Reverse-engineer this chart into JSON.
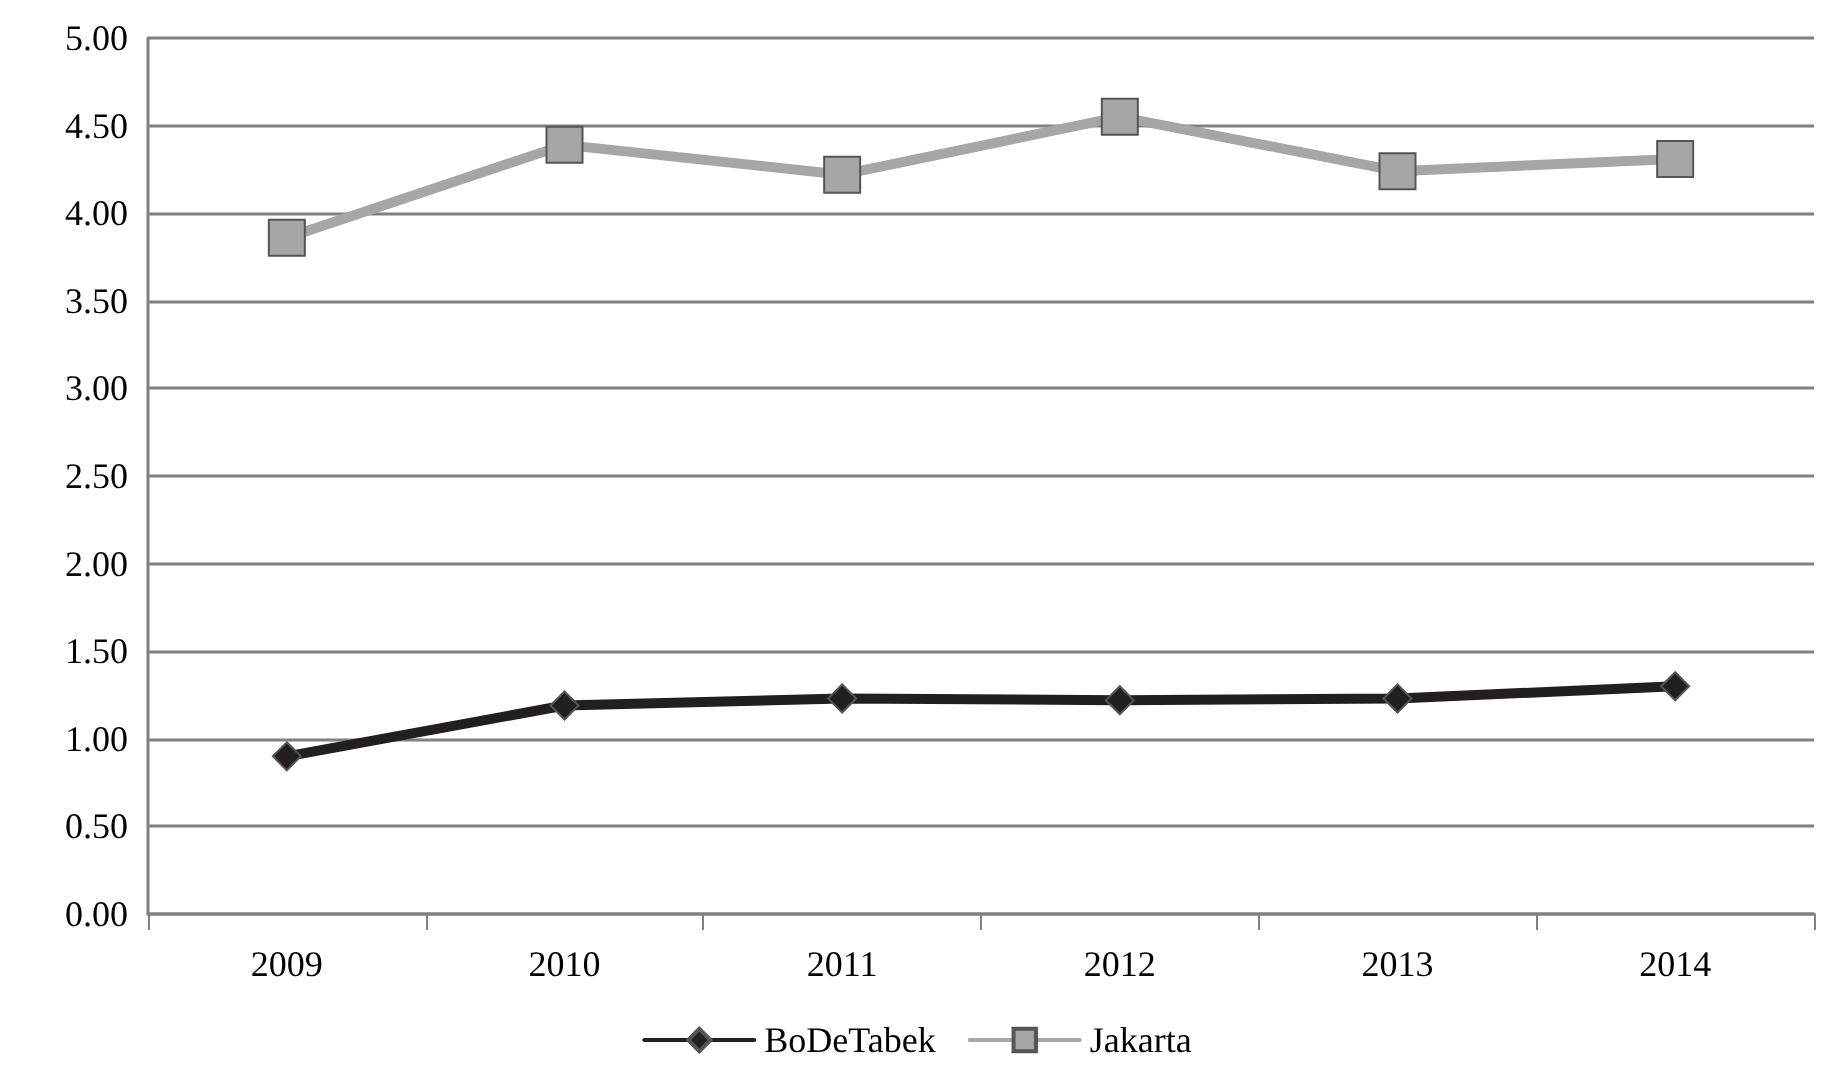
{
  "chart_data": {
    "type": "line",
    "categories": [
      "2009",
      "2010",
      "2011",
      "2012",
      "2013",
      "2014"
    ],
    "series": [
      {
        "name": "BoDeTabek",
        "color": "#231f20",
        "marker": "diamond",
        "values": [
          0.9,
          1.19,
          1.23,
          1.22,
          1.23,
          1.3
        ]
      },
      {
        "name": "Jakarta",
        "color": "#a6a6a6",
        "marker": "square",
        "values": [
          3.86,
          4.39,
          4.22,
          4.55,
          4.24,
          4.31
        ]
      }
    ],
    "ylim": [
      0,
      5
    ],
    "yticks": [
      {
        "value": 0,
        "label": "0.00"
      },
      {
        "value": 0.5,
        "label": "0.50"
      },
      {
        "value": 1,
        "label": "1.00"
      },
      {
        "value": 1.5,
        "label": "1.50"
      },
      {
        "value": 2,
        "label": "2.00"
      },
      {
        "value": 2.5,
        "label": "2.50"
      },
      {
        "value": 3,
        "label": "3.00"
      },
      {
        "value": 3.5,
        "label": "3.50"
      },
      {
        "value": 4,
        "label": "4.00"
      },
      {
        "value": 4.5,
        "label": "4.50"
      },
      {
        "value": 5,
        "label": "5.00"
      }
    ],
    "grid": "y",
    "legend": "bottom",
    "line_style": "solid"
  }
}
